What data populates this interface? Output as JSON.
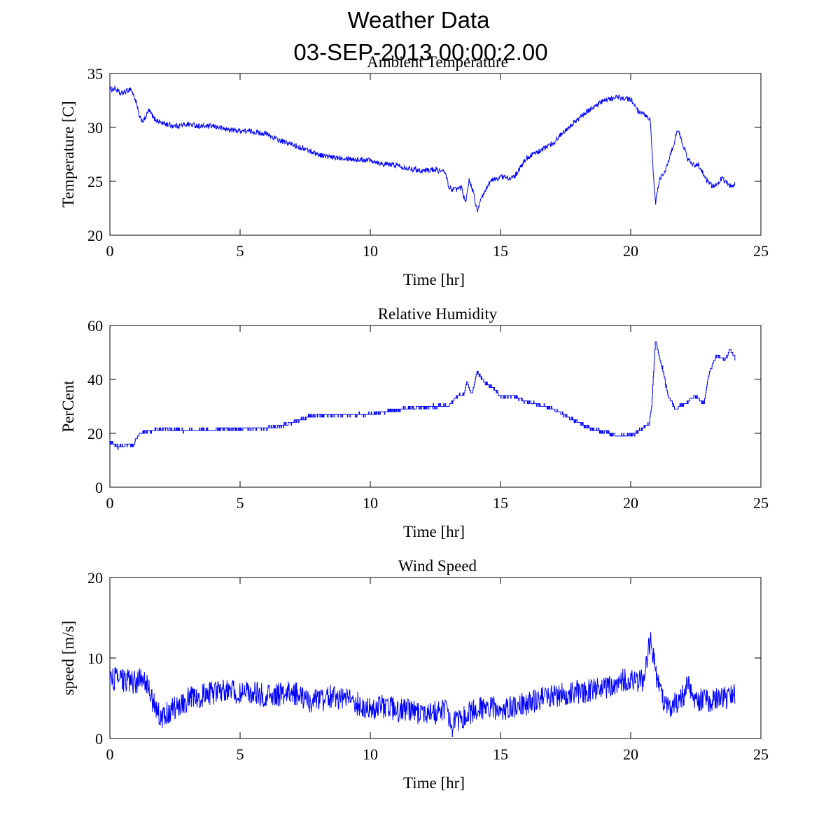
{
  "figure": {
    "title_line1": "Weather Data",
    "title_line2": "03-SEP-2013 00:00:2.00",
    "series_color": "#0000ff"
  },
  "chart_data": [
    {
      "type": "line",
      "title": "Ambient Temperature",
      "xlabel": "Time [hr]",
      "ylabel": "Temperature [C]",
      "xlim": [
        0,
        25
      ],
      "ylim": [
        20,
        35
      ],
      "xticks": [
        0,
        5,
        10,
        15,
        20,
        25
      ],
      "yticks": [
        20,
        25,
        30,
        35
      ],
      "grid": false,
      "series": [
        {
          "name": "Ambient Temperature",
          "noise": 0.25,
          "step": 0,
          "points": [
            [
              0,
              33.5
            ],
            [
              0.2,
              33.6
            ],
            [
              0.4,
              33.1
            ],
            [
              0.6,
              33.3
            ],
            [
              0.8,
              33.6
            ],
            [
              1.0,
              32.4
            ],
            [
              1.15,
              30.8
            ],
            [
              1.3,
              30.6
            ],
            [
              1.5,
              31.6
            ],
            [
              1.7,
              30.8
            ],
            [
              2.0,
              30.4
            ],
            [
              2.5,
              30.1
            ],
            [
              3.0,
              30.3
            ],
            [
              3.5,
              30.1
            ],
            [
              4.0,
              30.1
            ],
            [
              4.5,
              29.8
            ],
            [
              5.0,
              29.7
            ],
            [
              5.5,
              29.6
            ],
            [
              6.0,
              29.4
            ],
            [
              6.5,
              28.8
            ],
            [
              7.0,
              28.4
            ],
            [
              7.5,
              28.0
            ],
            [
              8.0,
              27.5
            ],
            [
              8.5,
              27.2
            ],
            [
              9.0,
              27.2
            ],
            [
              9.5,
              27.0
            ],
            [
              10.0,
              27.0
            ],
            [
              10.5,
              26.6
            ],
            [
              11.0,
              26.5
            ],
            [
              11.5,
              26.2
            ],
            [
              12.0,
              26.0
            ],
            [
              12.5,
              26.1
            ],
            [
              12.9,
              25.8
            ],
            [
              13.0,
              24.5
            ],
            [
              13.2,
              24.2
            ],
            [
              13.5,
              24.4
            ],
            [
              13.65,
              23.0
            ],
            [
              13.8,
              25.2
            ],
            [
              13.95,
              24.0
            ],
            [
              14.1,
              22.3
            ],
            [
              14.3,
              23.5
            ],
            [
              14.6,
              25.0
            ],
            [
              15.0,
              25.4
            ],
            [
              15.5,
              25.3
            ],
            [
              15.7,
              26.0
            ],
            [
              16.0,
              27.2
            ],
            [
              16.5,
              27.8
            ],
            [
              17.0,
              28.5
            ],
            [
              17.5,
              29.8
            ],
            [
              18.0,
              30.8
            ],
            [
              18.5,
              31.8
            ],
            [
              19.0,
              32.5
            ],
            [
              19.5,
              32.8
            ],
            [
              20.0,
              32.6
            ],
            [
              20.3,
              31.4
            ],
            [
              20.6,
              31.0
            ],
            [
              20.75,
              30.7
            ],
            [
              20.85,
              26.5
            ],
            [
              20.95,
              22.9
            ],
            [
              21.1,
              25.2
            ],
            [
              21.3,
              25.8
            ],
            [
              21.6,
              28.0
            ],
            [
              21.8,
              29.8
            ],
            [
              22.0,
              28.5
            ],
            [
              22.2,
              27.0
            ],
            [
              22.4,
              26.5
            ],
            [
              22.6,
              26.6
            ],
            [
              22.8,
              25.6
            ],
            [
              23.0,
              24.8
            ],
            [
              23.2,
              24.5
            ],
            [
              23.5,
              25.3
            ],
            [
              23.8,
              24.6
            ],
            [
              24.0,
              24.7
            ]
          ]
        }
      ]
    },
    {
      "type": "line",
      "title": "Relative Humidity",
      "xlabel": "Time [hr]",
      "ylabel": "PerCent",
      "xlim": [
        0,
        25
      ],
      "ylim": [
        0,
        60
      ],
      "xticks": [
        0,
        5,
        10,
        15,
        20,
        25
      ],
      "yticks": [
        0,
        20,
        40,
        60
      ],
      "grid": false,
      "series": [
        {
          "name": "Relative Humidity",
          "noise": 0.6,
          "step": 1,
          "points": [
            [
              0,
              16.5
            ],
            [
              0.3,
              15.0
            ],
            [
              0.6,
              15.2
            ],
            [
              0.9,
              15.8
            ],
            [
              1.1,
              19.5
            ],
            [
              1.3,
              20.5
            ],
            [
              1.6,
              20.8
            ],
            [
              2.0,
              21.5
            ],
            [
              2.5,
              21.2
            ],
            [
              3.0,
              21.0
            ],
            [
              4.0,
              21.2
            ],
            [
              5.0,
              21.8
            ],
            [
              6.0,
              21.9
            ],
            [
              6.6,
              22.8
            ],
            [
              7.0,
              24.0
            ],
            [
              7.5,
              25.8
            ],
            [
              8.0,
              26.8
            ],
            [
              9.0,
              26.9
            ],
            [
              10.0,
              27.0
            ],
            [
              11.0,
              28.8
            ],
            [
              12.0,
              29.8
            ],
            [
              13.0,
              30.2
            ],
            [
              13.3,
              33.5
            ],
            [
              13.6,
              35.0
            ],
            [
              13.7,
              39.5
            ],
            [
              13.9,
              34.5
            ],
            [
              14.1,
              43.0
            ],
            [
              14.4,
              38.5
            ],
            [
              14.7,
              37.0
            ],
            [
              15.0,
              33.5
            ],
            [
              15.5,
              34.0
            ],
            [
              16.0,
              31.5
            ],
            [
              16.5,
              30.5
            ],
            [
              17.0,
              29.0
            ],
            [
              17.5,
              26.5
            ],
            [
              18.0,
              24.0
            ],
            [
              18.5,
              21.5
            ],
            [
              19.0,
              20.5
            ],
            [
              19.5,
              19.0
            ],
            [
              20.0,
              19.2
            ],
            [
              20.4,
              21.5
            ],
            [
              20.7,
              23.5
            ],
            [
              20.8,
              30.0
            ],
            [
              20.95,
              55.0
            ],
            [
              21.1,
              48.0
            ],
            [
              21.25,
              43.0
            ],
            [
              21.4,
              35.0
            ],
            [
              21.7,
              29.0
            ],
            [
              22.0,
              30.5
            ],
            [
              22.5,
              34.0
            ],
            [
              22.8,
              31.0
            ],
            [
              23.0,
              42.0
            ],
            [
              23.3,
              49.0
            ],
            [
              23.6,
              47.0
            ],
            [
              23.8,
              51.0
            ],
            [
              24.0,
              48.0
            ]
          ]
        }
      ]
    },
    {
      "type": "line",
      "title": "Wind Speed",
      "xlabel": "Time [hr]",
      "ylabel": "speed [m/s]",
      "xlim": [
        0,
        25
      ],
      "ylim": [
        0,
        20
      ],
      "xticks": [
        0,
        5,
        10,
        15,
        20,
        25
      ],
      "yticks": [
        0,
        10,
        20
      ],
      "grid": false,
      "series": [
        {
          "name": "Wind Speed",
          "noise": 1.5,
          "step": 0,
          "points": [
            [
              0,
              7.5
            ],
            [
              0.5,
              7.2
            ],
            [
              1.0,
              7.0
            ],
            [
              1.3,
              7.8
            ],
            [
              1.6,
              5.0
            ],
            [
              2.0,
              2.3
            ],
            [
              2.3,
              3.5
            ],
            [
              2.7,
              4.3
            ],
            [
              3.2,
              5.2
            ],
            [
              3.8,
              5.5
            ],
            [
              4.5,
              6.2
            ],
            [
              5.0,
              5.5
            ],
            [
              5.5,
              5.7
            ],
            [
              6.0,
              5.3
            ],
            [
              6.5,
              5.4
            ],
            [
              7.0,
              5.8
            ],
            [
              7.5,
              4.8
            ],
            [
              8.0,
              4.6
            ],
            [
              8.5,
              5.3
            ],
            [
              9.0,
              4.9
            ],
            [
              9.5,
              4.3
            ],
            [
              10.0,
              3.6
            ],
            [
              10.5,
              4.0
            ],
            [
              11.0,
              3.6
            ],
            [
              11.5,
              3.4
            ],
            [
              12.0,
              3.1
            ],
            [
              12.5,
              3.2
            ],
            [
              12.9,
              3.6
            ],
            [
              13.1,
              1.4
            ],
            [
              13.4,
              2.4
            ],
            [
              13.8,
              3.1
            ],
            [
              14.2,
              3.7
            ],
            [
              14.6,
              3.9
            ],
            [
              15.0,
              3.6
            ],
            [
              15.5,
              3.9
            ],
            [
              16.0,
              4.3
            ],
            [
              16.5,
              4.9
            ],
            [
              17.0,
              5.3
            ],
            [
              17.5,
              5.6
            ],
            [
              18.0,
              5.8
            ],
            [
              18.5,
              5.9
            ],
            [
              19.0,
              6.3
            ],
            [
              19.5,
              7.0
            ],
            [
              20.0,
              7.5
            ],
            [
              20.5,
              7.0
            ],
            [
              20.75,
              12.5
            ],
            [
              21.0,
              7.5
            ],
            [
              21.3,
              4.2
            ],
            [
              21.6,
              3.9
            ],
            [
              22.0,
              5.3
            ],
            [
              22.2,
              6.8
            ],
            [
              22.5,
              4.8
            ],
            [
              23.0,
              4.6
            ],
            [
              23.5,
              5.0
            ],
            [
              24.0,
              5.3
            ]
          ]
        }
      ]
    }
  ]
}
